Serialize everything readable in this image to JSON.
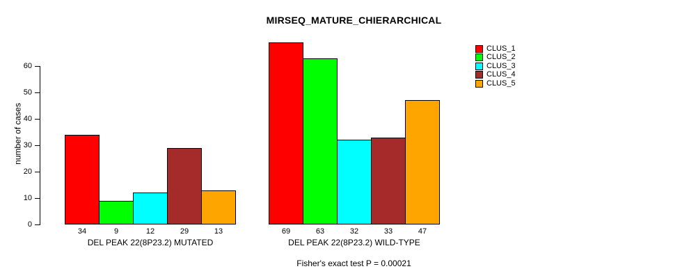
{
  "title": "MIRSEQ_MATURE_CHIERARCHICAL",
  "y_axis_label": "number of cases",
  "footer_note": "Fisher's exact test P = 0.00021",
  "chart_data": {
    "type": "bar",
    "title": "MIRSEQ_MATURE_CHIERARCHICAL",
    "xlabel": "",
    "ylabel": "number of cases",
    "ylim": [
      0,
      69
    ],
    "yticks": [
      0,
      10,
      20,
      30,
      40,
      50,
      60
    ],
    "grid": false,
    "legend_position": "top-right",
    "bar_value_labels_shown": true,
    "categories": [
      "DEL PEAK 22(8P23.2) MUTATED",
      "DEL PEAK 22(8P23.2) WILD-TYPE"
    ],
    "series": [
      {
        "name": "CLUS_1",
        "color": "#FF0000",
        "values": [
          34,
          69
        ]
      },
      {
        "name": "CLUS_2",
        "color": "#00FF00",
        "values": [
          9,
          63
        ]
      },
      {
        "name": "CLUS_3",
        "color": "#00FFFF",
        "values": [
          12,
          32
        ]
      },
      {
        "name": "CLUS_4",
        "color": "#A52A2A",
        "values": [
          29,
          33
        ]
      },
      {
        "name": "CLUS_5",
        "color": "#FFA500",
        "values": [
          13,
          47
        ]
      }
    ],
    "annotation": "Fisher's exact test P = 0.00021"
  }
}
